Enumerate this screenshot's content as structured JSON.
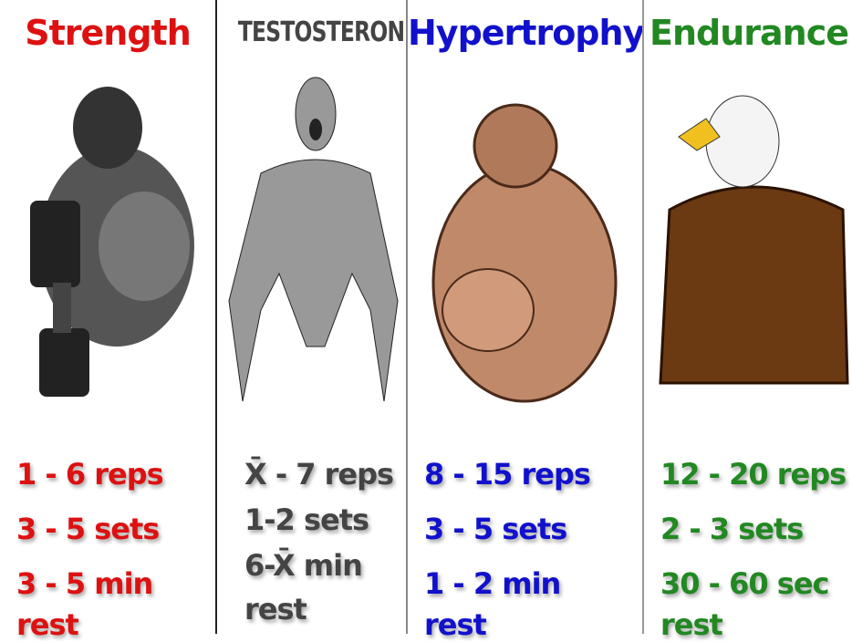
{
  "columns": [
    {
      "title": "Strength",
      "color": "#dd1111",
      "figure": "gorilla-with-dumbbell",
      "lines": [
        "1 - 6 reps",
        "3 - 5 sets",
        "3 - 5 min"
      ],
      "rest": "rest"
    },
    {
      "title": "TESTOSTERONE",
      "color": "#444444",
      "figure": "grey-wojak-muscular",
      "lines": [
        "X̄ - 7 reps",
        "1-2 sets",
        "6-X̄ min"
      ],
      "rest": "rest"
    },
    {
      "title": "Hypertrophy",
      "color": "#1111cc",
      "figure": "muscular-pitbull",
      "lines": [
        "8 - 15 reps",
        "3 - 5 sets",
        "1 - 2 min"
      ],
      "rest": "rest"
    },
    {
      "title": "Endurance",
      "color": "#228822",
      "figure": "muscular-eagle",
      "lines": [
        "12 - 20 reps",
        "2 - 3 sets",
        "30 - 60 sec"
      ],
      "rest": "rest"
    }
  ]
}
